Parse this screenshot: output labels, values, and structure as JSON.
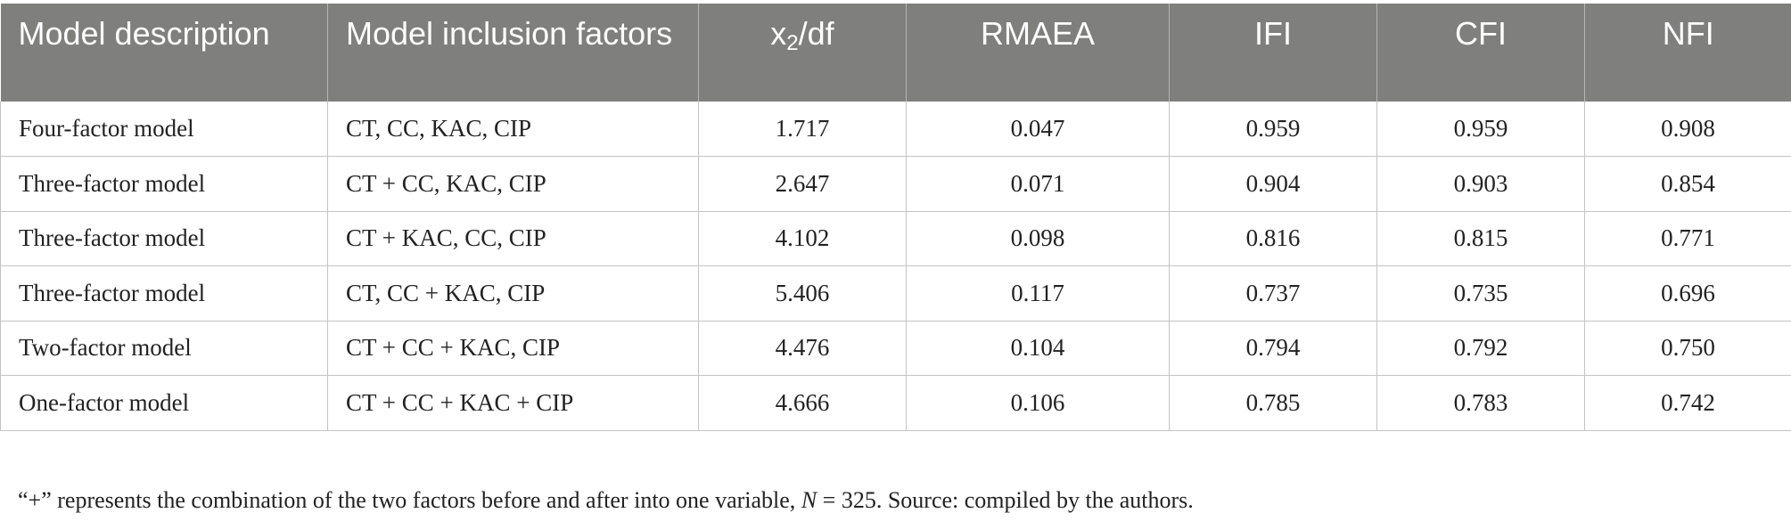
{
  "table": {
    "headers": {
      "model_description": "Model description",
      "model_inclusion": "Model inclusion factors",
      "chi_base": "x",
      "chi_sub": "2",
      "chi_tail": "/df",
      "rmaea": "RMAEA",
      "ifi": "IFI",
      "cfi": "CFI",
      "nfi": "NFI"
    },
    "rows": [
      {
        "desc": "Four-factor model",
        "factors": "CT, CC, KAC, CIP",
        "chi": "1.717",
        "rmaea": "0.047",
        "ifi": "0.959",
        "cfi": "0.959",
        "nfi": "0.908"
      },
      {
        "desc": "Three-factor model",
        "factors": "CT + CC, KAC, CIP",
        "chi": "2.647",
        "rmaea": "0.071",
        "ifi": "0.904",
        "cfi": "0.903",
        "nfi": "0.854"
      },
      {
        "desc": "Three-factor model",
        "factors": "CT + KAC, CC, CIP",
        "chi": "4.102",
        "rmaea": "0.098",
        "ifi": "0.816",
        "cfi": "0.815",
        "nfi": "0.771"
      },
      {
        "desc": "Three-factor model",
        "factors": "CT, CC + KAC, CIP",
        "chi": "5.406",
        "rmaea": "0.117",
        "ifi": "0.737",
        "cfi": "0.735",
        "nfi": "0.696"
      },
      {
        "desc": "Two-factor model",
        "factors": "CT + CC + KAC, CIP",
        "chi": "4.476",
        "rmaea": "0.104",
        "ifi": "0.794",
        "cfi": "0.792",
        "nfi": "0.750"
      },
      {
        "desc": "One-factor model",
        "factors": "CT + CC + KAC + CIP",
        "chi": "4.666",
        "rmaea": "0.106",
        "ifi": "0.785",
        "cfi": "0.783",
        "nfi": "0.742"
      }
    ]
  },
  "footnote": {
    "before": "“+” represents the combination of the two factors before and after into one variable, ",
    "n_label": "N",
    "after": " = 325. Source: compiled by the authors."
  }
}
